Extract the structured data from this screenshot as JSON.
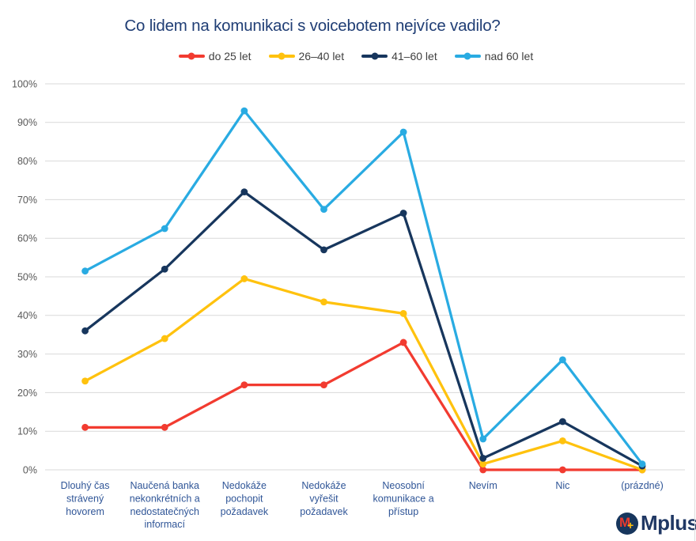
{
  "chart_data": {
    "type": "line",
    "title": "Co lidem na komunikaci s voicebotem nejvíce vadilo?",
    "categories": [
      "Dlouhý čas strávený hovorem",
      "Naučená banka nekonkrétních a nedostatečných informací",
      "Nedokáže pochopit požadavek",
      "Nedokáže vyřešit požadavek",
      "Neosobní komunikace a přístup",
      "Nevím",
      "Nic",
      "(prázdné)"
    ],
    "categories_wrapped": [
      [
        "Dlouhý čas",
        "strávený",
        "hovorem"
      ],
      [
        "Naučená banka",
        "nekonkrétních a",
        "nedostatečných",
        "informací"
      ],
      [
        "Nedokáže",
        "pochopit",
        "požadavek"
      ],
      [
        "Nedokáže",
        "vyřešit",
        "požadavek"
      ],
      [
        "Neosobní",
        "komunikace a",
        "přístup"
      ],
      [
        "Nevím"
      ],
      [
        "Nic"
      ],
      [
        "(prázdné)"
      ]
    ],
    "series": [
      {
        "name": "do 25 let",
        "color": "#F23B30",
        "values": [
          11,
          11,
          22,
          22,
          33,
          0,
          0,
          0
        ]
      },
      {
        "name": "26–40 let",
        "color": "#FFC20E",
        "values": [
          23,
          34,
          49.5,
          43.5,
          40.5,
          1.5,
          7.5,
          0
        ]
      },
      {
        "name": "41–60 let",
        "color": "#17365D",
        "values": [
          36,
          52,
          72,
          57,
          66.5,
          3,
          12.5,
          1
        ]
      },
      {
        "name": "nad 60 let",
        "color": "#29ABE2",
        "values": [
          51.5,
          62.5,
          93,
          67.5,
          87.5,
          8,
          28.5,
          1.5
        ]
      }
    ],
    "ylim": [
      0,
      100
    ],
    "ytick_step": 10,
    "ytick_labels": [
      "0%",
      "10%",
      "20%",
      "30%",
      "40%",
      "50%",
      "60%",
      "70%",
      "80%",
      "90%",
      "100%"
    ],
    "grid": "horizontal",
    "legend_position": "top"
  },
  "colors": {
    "title": "#203E75",
    "x_axis_labels": "#2F5597",
    "y_axis_labels": "#595959",
    "gridline": "#D9D9D9",
    "legend_text": "#404040",
    "background": "#FFFFFF"
  },
  "logo": {
    "icon_letter": "M",
    "icon_plus": "+",
    "text": "Mplus",
    "icon_bg": "#17365D",
    "icon_letter_color": "#E8392D",
    "icon_plus_color": "#FFC20E",
    "text_color": "#203864"
  }
}
